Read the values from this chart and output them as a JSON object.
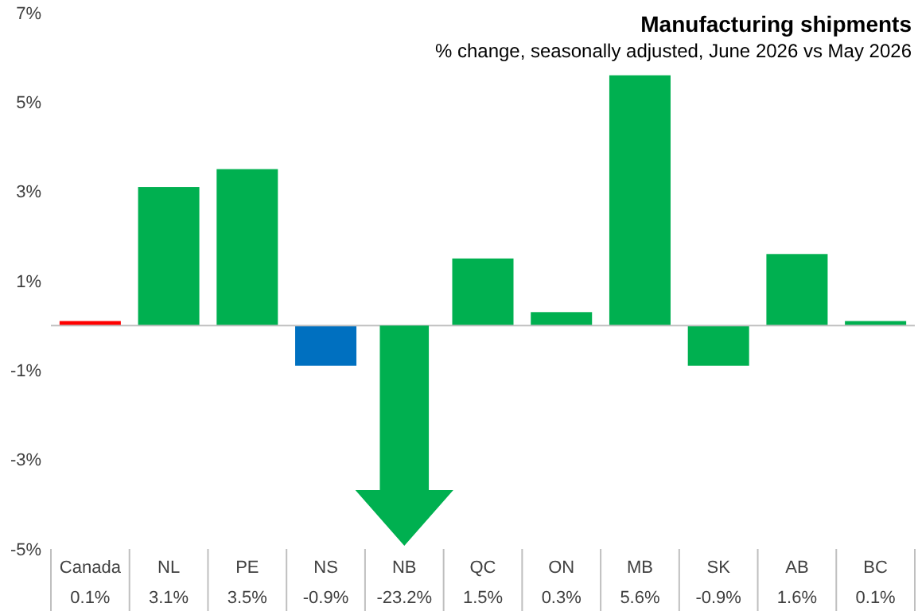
{
  "chart_data": {
    "type": "bar",
    "title": "Manufacturing shipments",
    "subtitle": "% change, seasonally adjusted, June 2026 vs May 2026",
    "categories": [
      "Canada",
      "NL",
      "PE",
      "NS",
      "NB",
      "QC",
      "ON",
      "MB",
      "SK",
      "AB",
      "BC"
    ],
    "values": [
      0.1,
      3.1,
      3.5,
      -0.9,
      null,
      1.5,
      0.3,
      5.6,
      -0.9,
      1.6,
      0.1
    ],
    "colors": [
      "#ff0000",
      "#00b050",
      "#00b050",
      "#0070c0",
      "#00b050",
      "#00b050",
      "#00b050",
      "#00b050",
      "#00b050",
      "#00b050",
      "#00b050"
    ],
    "value_labels": [
      "0.1%",
      "3.1%",
      "3.5%",
      "-0.9%",
      "-23.2%",
      "1.5%",
      "0.3%",
      "5.6%",
      "-0.9%",
      "1.6%",
      "0.1%"
    ],
    "ylim": [
      -5,
      7
    ],
    "yticks": [
      {
        "value": -5,
        "label": "-5%"
      },
      {
        "value": -3,
        "label": "-3%"
      },
      {
        "value": -1,
        "label": "-1%"
      },
      {
        "value": 1,
        "label": "1%"
      },
      {
        "value": 3,
        "label": "3%"
      },
      {
        "value": 5,
        "label": "5%"
      },
      {
        "value": 7,
        "label": "7%"
      }
    ],
    "grid": false
  }
}
